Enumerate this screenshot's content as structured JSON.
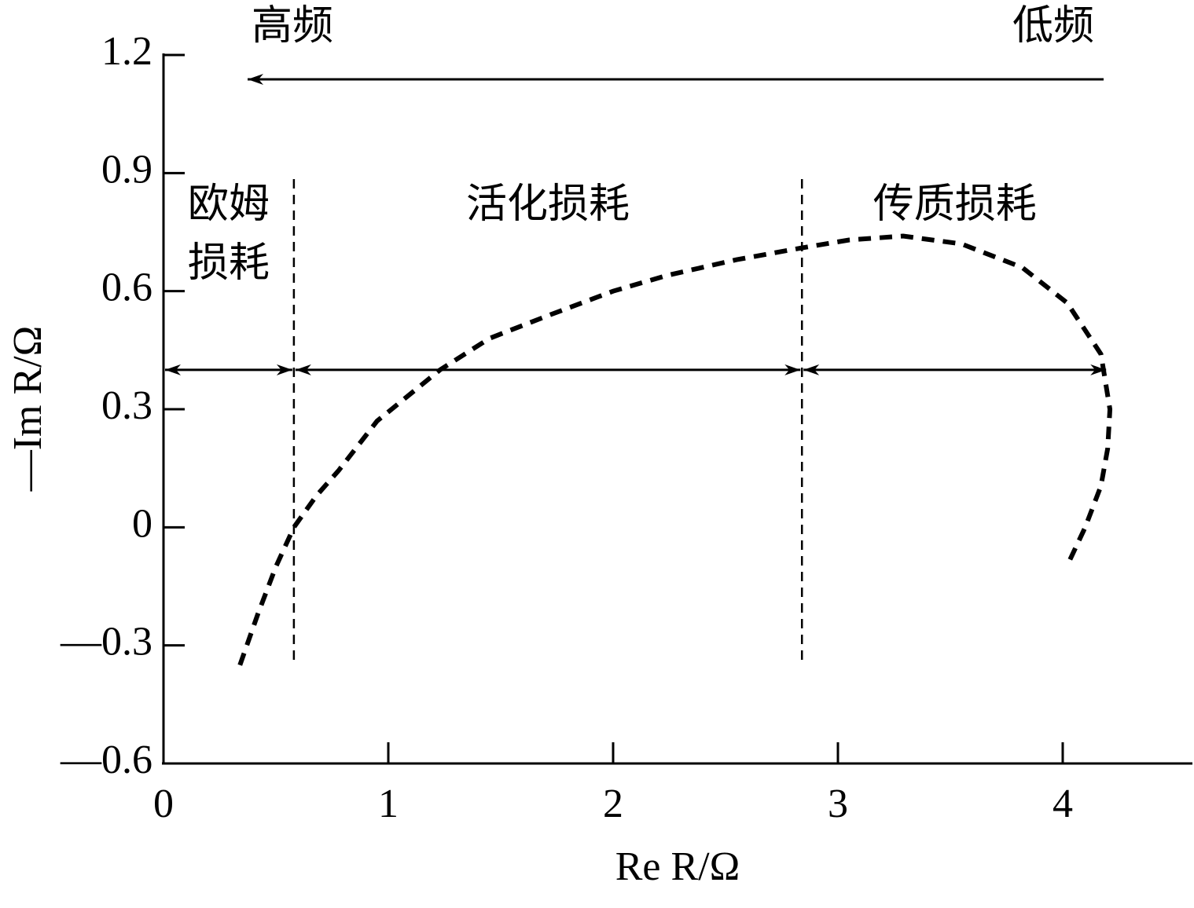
{
  "chart_data": {
    "type": "line",
    "x_label": "Re R/Ω",
    "y_label": "—Im R/Ω",
    "xlim": [
      0,
      4.57
    ],
    "ylim": [
      -0.6,
      1.2
    ],
    "xticks": [
      0,
      1,
      2,
      3,
      4
    ],
    "yticks": [
      1.2,
      0.9,
      0.6,
      0.3,
      0,
      {
        "value": -0.3,
        "label": "—0.3"
      },
      {
        "value": -0.6,
        "label": "—0.6"
      }
    ],
    "series": [
      {
        "color": "#000",
        "x": [
          0.34,
          0.42,
          0.5,
          0.58,
          0.68,
          0.78,
          0.95,
          1.23,
          1.45,
          1.72,
          2.0,
          2.24,
          2.55,
          2.84,
          3.05,
          3.29,
          3.55,
          3.82,
          4.02,
          4.17,
          4.21,
          4.2,
          4.17,
          4.1,
          4.03
        ],
        "values": [
          -0.35,
          -0.22,
          -0.1,
          0.0,
          0.08,
          0.145,
          0.27,
          0.4,
          0.48,
          0.54,
          0.6,
          0.64,
          0.68,
          0.71,
          0.73,
          0.74,
          0.72,
          0.66,
          0.57,
          0.44,
          0.3,
          0.2,
          0.105,
          0.0,
          -0.085
        ]
      }
    ],
    "regions": [
      {
        "label": [
          "欧姆",
          "损耗"
        ],
        "from": 0,
        "to": 0.58
      },
      {
        "label": [
          "活化损耗"
        ],
        "from": 0.58,
        "to": 2.84
      },
      {
        "label": [
          "传质损耗"
        ],
        "from": 2.84,
        "to": 4.2
      }
    ],
    "region_arrow_y": 0.4,
    "direction": {
      "left": "高频",
      "right": "低频"
    }
  }
}
